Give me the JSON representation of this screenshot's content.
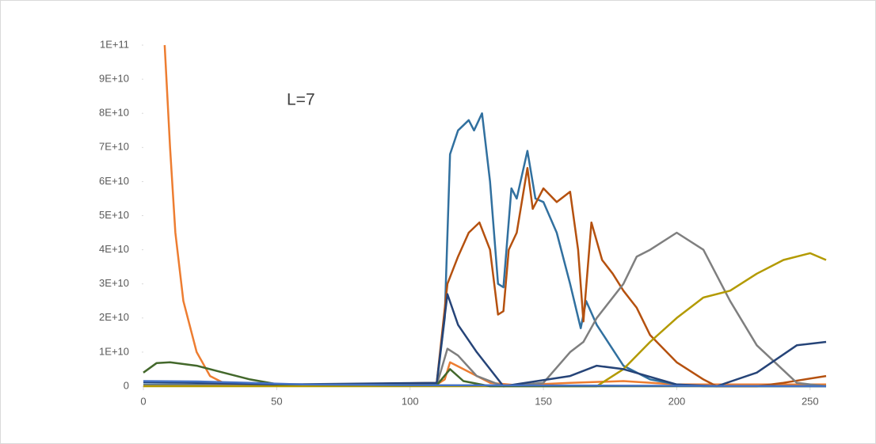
{
  "chart_data": {
    "type": "line",
    "annotation": "L=7",
    "xlim": [
      0,
      256
    ],
    "xticks": [
      0,
      50,
      100,
      150,
      200,
      250
    ],
    "ylim": [
      0,
      100000000000.0
    ],
    "yticks": [
      0,
      {
        "value": 10000000000.0,
        "label": "1E+10"
      },
      {
        "value": 20000000000.0,
        "label": "2E+10"
      },
      {
        "value": 30000000000.0,
        "label": "3E+10"
      },
      {
        "value": 40000000000.0,
        "label": "4E+10"
      },
      {
        "value": 50000000000.0,
        "label": "5E+10"
      },
      {
        "value": 60000000000.0,
        "label": "6E+10"
      },
      {
        "value": 70000000000.0,
        "label": "7E+10"
      },
      {
        "value": 80000000000.0,
        "label": "8E+10"
      },
      {
        "value": 90000000000.0,
        "label": "9E+10"
      },
      {
        "value": 100000000000.0,
        "label": "1E+11"
      }
    ],
    "series": [
      {
        "color": "#ed7d31",
        "x": [
          8,
          10,
          12,
          15,
          20,
          25,
          30,
          40,
          60,
          110,
          113,
          115,
          120,
          130,
          140,
          160,
          180,
          200,
          256
        ],
        "values": [
          100000000000.0,
          70000000000.0,
          45000000000.0,
          25000000000.0,
          10000000000.0,
          3000000000.0,
          1000000000.0,
          300000000.0,
          500000000.0,
          500000000.0,
          2000000000.0,
          7000000000.0,
          5000000000.0,
          1000000000.0,
          300000000.0,
          1000000000.0,
          1500000000.0,
          500000000.0,
          500000000.0
        ]
      },
      {
        "color": "#31709f",
        "x": [
          0,
          50,
          110,
          113,
          115,
          118,
          122,
          124,
          127,
          130,
          133,
          135,
          138,
          140,
          144,
          147,
          150,
          155,
          160,
          164,
          166,
          170,
          175,
          180,
          190,
          200,
          210,
          256
        ],
        "values": [
          500000000.0,
          300000000.0,
          500000000.0,
          20000000000.0,
          68000000000.0,
          75000000000.0,
          78000000000.0,
          75000000000.0,
          80000000000.0,
          60000000000.0,
          30000000000.0,
          29000000000.0,
          58000000000.0,
          55000000000.0,
          69000000000.0,
          55000000000.0,
          54000000000.0,
          45000000000.0,
          30000000000.0,
          17000000000.0,
          25000000000.0,
          18000000000.0,
          12000000000.0,
          6000000000.0,
          2000000000.0,
          500000000.0,
          0,
          0
        ]
      },
      {
        "color": "#b5510f",
        "x": [
          0,
          50,
          110,
          114,
          118,
          122,
          126,
          130,
          133,
          135,
          137,
          140,
          144,
          146,
          150,
          155,
          160,
          163,
          165,
          168,
          172,
          176,
          180,
          185,
          190,
          200,
          210,
          215,
          230,
          240,
          256
        ],
        "values": [
          300000000.0,
          300000000.0,
          1000000000.0,
          30000000000.0,
          38000000000.0,
          45000000000.0,
          48000000000.0,
          40000000000.0,
          21000000000.0,
          22000000000.0,
          40000000000.0,
          45000000000.0,
          64000000000.0,
          52000000000.0,
          58000000000.0,
          54000000000.0,
          57000000000.0,
          40000000000.0,
          19000000000.0,
          48000000000.0,
          37000000000.0,
          33000000000.0,
          28000000000.0,
          23000000000.0,
          15000000000.0,
          7000000000.0,
          2000000000.0,
          0,
          0,
          1000000000.0,
          3000000000.0
        ]
      },
      {
        "color": "#7f7f7f",
        "x": [
          0,
          110,
          114,
          118,
          125,
          135,
          150,
          160,
          165,
          170,
          180,
          185,
          190,
          200,
          210,
          220,
          230,
          245,
          256
        ],
        "values": [
          300000000.0,
          300000000.0,
          11000000000.0,
          9000000000.0,
          3000000000.0,
          0,
          1000000000.0,
          10000000000.0,
          13000000000.0,
          20000000000.0,
          30000000000.0,
          38000000000.0,
          40000000000.0,
          45000000000.0,
          40000000000.0,
          25000000000.0,
          12000000000.0,
          1000000000.0,
          0
        ]
      },
      {
        "color": "#b39a00",
        "x": [
          0,
          170,
          180,
          190,
          200,
          210,
          220,
          230,
          240,
          250,
          256
        ],
        "values": [
          0,
          0,
          5000000000.0,
          13000000000.0,
          20000000000.0,
          26000000000.0,
          28000000000.0,
          33000000000.0,
          37000000000.0,
          39000000000.0,
          37000000000.0
        ]
      },
      {
        "color": "#264478",
        "x": [
          0,
          20,
          50,
          110,
          114,
          118,
          125,
          135,
          160,
          170,
          180,
          200,
          215,
          230,
          245,
          256
        ],
        "values": [
          1200000000.0,
          1000000000.0,
          500000000.0,
          1000000000.0,
          27000000000.0,
          18000000000.0,
          10000000000.0,
          0,
          3000000000.0,
          6000000000.0,
          5000000000.0,
          500000000.0,
          0,
          4000000000.0,
          12000000000.0,
          13000000000.0
        ]
      },
      {
        "color": "#43682b",
        "x": [
          0,
          5,
          10,
          20,
          30,
          40,
          50,
          60,
          110,
          115,
          120,
          130,
          256
        ],
        "values": [
          4000000000.0,
          6800000000.0,
          7000000000.0,
          6000000000.0,
          4000000000.0,
          2000000000.0,
          600000000.0,
          500000000.0,
          300000000.0,
          5000000000.0,
          1500000000.0,
          0,
          0
        ]
      },
      {
        "color": "#4472c4",
        "x": [
          0,
          20,
          40,
          60,
          110,
          256
        ],
        "values": [
          1500000000.0,
          1400000000.0,
          1000000000.0,
          500000000.0,
          300000000.0,
          0
        ]
      }
    ]
  }
}
